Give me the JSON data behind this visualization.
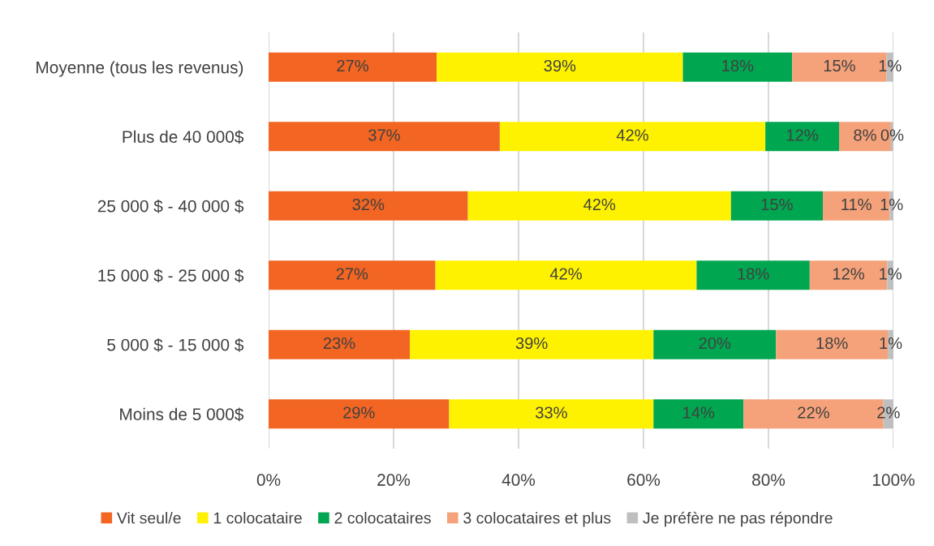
{
  "chart_data": {
    "type": "bar",
    "orientation": "horizontal",
    "stacked": true,
    "categories": [
      "Moyenne (tous les revenus)",
      "Plus de 40 000$",
      "25 000 $ - 40 000 $",
      "15 000 $ - 25 000 $",
      "5 000 $ - 15 000 $",
      "Moins de 5 000$"
    ],
    "series": [
      {
        "name": "Vit seul/e",
        "color": "#f26522",
        "values": [
          26.9,
          37.0,
          31.9,
          26.7,
          22.6,
          28.9
        ],
        "value_labels": [
          "27%",
          "37%",
          "32%",
          "27%",
          "23%",
          "29%"
        ]
      },
      {
        "name": "1 colocataire",
        "color": "#fff200",
        "values": [
          39.4,
          42.5,
          42.1,
          41.8,
          39.0,
          32.7
        ],
        "value_labels": [
          "39%",
          "42%",
          "42%",
          "42%",
          "39%",
          "33%"
        ]
      },
      {
        "name": "2 colocataires",
        "color": "#00a650",
        "values": [
          17.5,
          11.8,
          14.7,
          18.1,
          19.6,
          14.4
        ],
        "value_labels": [
          "18%",
          "12%",
          "15%",
          "18%",
          "20%",
          "14%"
        ]
      },
      {
        "name": "3 colocataires et plus",
        "color": "#f5a27a",
        "values": [
          15.1,
          8.3,
          10.7,
          12.4,
          17.9,
          22.4
        ],
        "value_labels": [
          "15%",
          "8%",
          "11%",
          "12%",
          "18%",
          "22%"
        ]
      },
      {
        "name": "Je préfère ne pas répondre",
        "color": "#bfbfbf",
        "values": [
          1.1,
          0.4,
          0.6,
          1.0,
          0.9,
          1.6
        ],
        "value_labels": [
          "1%",
          "0%",
          "1%",
          "1%",
          "1%",
          "2%"
        ]
      }
    ],
    "xlim": [
      0,
      100
    ],
    "xticks": [
      {
        "value": 0,
        "label": "0%"
      },
      {
        "value": 20,
        "label": "20%"
      },
      {
        "value": 40,
        "label": "40%"
      },
      {
        "value": 60,
        "label": "60%"
      },
      {
        "value": 80,
        "label": "80%"
      },
      {
        "value": 100,
        "label": "100%"
      }
    ],
    "grid": "x",
    "legend": "bottom"
  }
}
